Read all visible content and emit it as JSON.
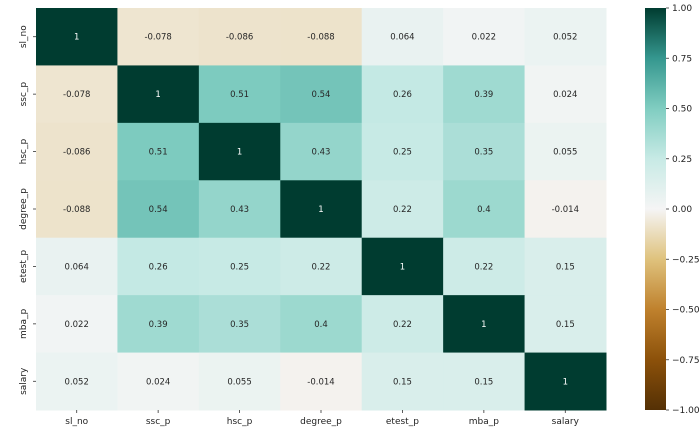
{
  "chart_data": {
    "type": "heatmap",
    "title": "",
    "xlabel": "",
    "ylabel": "",
    "x_labels": [
      "sl_no",
      "ssc_p",
      "hsc_p",
      "degree_p",
      "etest_p",
      "mba_p",
      "salary"
    ],
    "y_labels": [
      "sl_no",
      "ssc_p",
      "hsc_p",
      "degree_p",
      "etest_p",
      "mba_p",
      "salary"
    ],
    "values": [
      [
        1,
        -0.078,
        -0.086,
        -0.088,
        0.064,
        0.022,
        0.052
      ],
      [
        -0.078,
        1,
        0.51,
        0.54,
        0.26,
        0.39,
        0.024
      ],
      [
        -0.086,
        0.51,
        1,
        0.43,
        0.25,
        0.35,
        0.055
      ],
      [
        -0.088,
        0.54,
        0.43,
        1,
        0.22,
        0.4,
        -0.014
      ],
      [
        0.064,
        0.26,
        0.25,
        0.22,
        1,
        0.22,
        0.15
      ],
      [
        0.022,
        0.39,
        0.35,
        0.4,
        0.22,
        1,
        0.15
      ],
      [
        0.052,
        0.024,
        0.055,
        -0.014,
        0.15,
        0.15,
        1
      ]
    ],
    "value_labels": [
      [
        "1",
        "-0.078",
        "-0.086",
        "-0.088",
        "0.064",
        "0.022",
        "0.052"
      ],
      [
        "-0.078",
        "1",
        "0.51",
        "0.54",
        "0.26",
        "0.39",
        "0.024"
      ],
      [
        "-0.086",
        "0.51",
        "1",
        "0.43",
        "0.25",
        "0.35",
        "0.055"
      ],
      [
        "-0.088",
        "0.54",
        "0.43",
        "1",
        "0.22",
        "0.4",
        "-0.014"
      ],
      [
        "0.064",
        "0.26",
        "0.25",
        "0.22",
        "1",
        "0.22",
        "0.15"
      ],
      [
        "0.022",
        "0.39",
        "0.35",
        "0.4",
        "0.22",
        "1",
        "0.15"
      ],
      [
        "0.052",
        "0.024",
        "0.055",
        "-0.014",
        "0.15",
        "0.15",
        "1"
      ]
    ],
    "colormap": "BrBG",
    "vmin": -1.0,
    "vmax": 1.0,
    "colorbar_ticks": [
      "1.00",
      "0.75",
      "0.50",
      "0.25",
      "0.00",
      "−0.25",
      "−0.50",
      "−0.75",
      "−1.00"
    ],
    "colorbar_tick_values": [
      1.0,
      0.75,
      0.5,
      0.25,
      0.0,
      -0.25,
      -0.5,
      -0.75,
      -1.0
    ]
  }
}
